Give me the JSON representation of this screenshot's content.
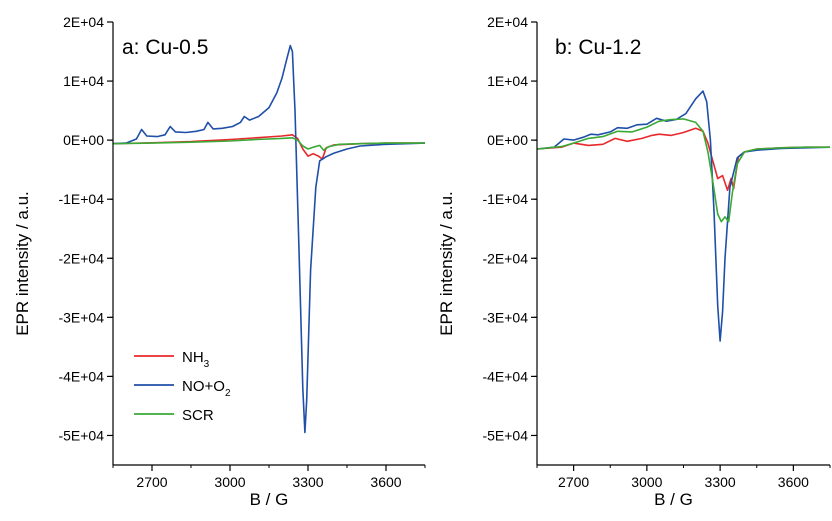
{
  "chart_data": [
    {
      "type": "line",
      "title": "a: Cu-0.5",
      "xlabel": "B / G",
      "ylabel": "EPR intensity / a.u.",
      "xlim": [
        2550,
        3750
      ],
      "ylim": [
        -55000,
        20000
      ],
      "x_ticks": [
        2700,
        3000,
        3300,
        3600
      ],
      "y_ticks": [
        20000,
        10000,
        0,
        -10000,
        -20000,
        -30000,
        -40000,
        -50000
      ],
      "y_tick_labels": [
        "2E+04",
        "1E+04",
        "0E+00",
        "-1E+04",
        "-2E+04",
        "-3E+04",
        "-4E+04",
        "-5E+04"
      ],
      "legend": "bottom-left",
      "series": [
        {
          "name": "NH3",
          "legend_main": "NH",
          "legend_sub": "3",
          "color": "#e8282b",
          "x": [
            2550,
            2700,
            2850,
            3000,
            3100,
            3200,
            3240,
            3260,
            3280,
            3300,
            3320,
            3340,
            3355,
            3370,
            3400,
            3500,
            3600,
            3750
          ],
          "y": [
            -600,
            -450,
            -250,
            100,
            400,
            700,
            900,
            300,
            -1500,
            -2700,
            -2300,
            -2700,
            -3200,
            -1300,
            -800,
            -600,
            -500,
            -500
          ]
        },
        {
          "name": "NO+O2",
          "legend_main": "NO+O",
          "legend_sub": "2",
          "color": "#1f4fa8",
          "x": [
            2550,
            2600,
            2640,
            2660,
            2680,
            2720,
            2750,
            2770,
            2790,
            2830,
            2870,
            2900,
            2915,
            2935,
            2970,
            3010,
            3040,
            3055,
            3075,
            3110,
            3150,
            3180,
            3200,
            3220,
            3232,
            3240,
            3250,
            3265,
            3280,
            3288,
            3295,
            3310,
            3330,
            3345,
            3370,
            3400,
            3450,
            3500,
            3600,
            3750
          ],
          "y": [
            -600,
            -500,
            200,
            1800,
            700,
            600,
            900,
            2300,
            1400,
            1300,
            1500,
            1800,
            3000,
            1900,
            2000,
            2300,
            3000,
            4000,
            3400,
            4000,
            5500,
            8000,
            10500,
            14000,
            16000,
            15000,
            5000,
            -18000,
            -42000,
            -49500,
            -44000,
            -22000,
            -8000,
            -3500,
            -2800,
            -2200,
            -1500,
            -1000,
            -700,
            -500
          ]
        },
        {
          "name": "SCR",
          "legend_main": "SCR",
          "legend_sub": "",
          "color": "#3aa935",
          "x": [
            2550,
            2700,
            2850,
            3000,
            3100,
            3200,
            3240,
            3260,
            3280,
            3300,
            3320,
            3345,
            3360,
            3380,
            3420,
            3500,
            3600,
            3750
          ],
          "y": [
            -600,
            -500,
            -350,
            -150,
            100,
            300,
            400,
            0,
            -1000,
            -1500,
            -1200,
            -900,
            -1700,
            -1100,
            -700,
            -600,
            -500,
            -500
          ]
        }
      ]
    },
    {
      "type": "line",
      "title": "b: Cu-1.2",
      "xlabel": "B / G",
      "ylabel": "EPR intensity / a.u.",
      "xlim": [
        2550,
        3750
      ],
      "ylim": [
        -55000,
        20000
      ],
      "x_ticks": [
        2700,
        3000,
        3300,
        3600
      ],
      "y_ticks": [
        20000,
        10000,
        0,
        -10000,
        -20000,
        -30000,
        -40000,
        -50000
      ],
      "y_tick_labels": [
        "2E+04",
        "1E+04",
        "0E+00",
        "-1E+04",
        "-2E+04",
        "-3E+04",
        "-4E+04",
        "-5E+04"
      ],
      "series": [
        {
          "name": "NH3",
          "color": "#e8282b",
          "x": [
            2550,
            2650,
            2700,
            2760,
            2820,
            2870,
            2920,
            2980,
            3020,
            3050,
            3100,
            3150,
            3200,
            3230,
            3250,
            3270,
            3290,
            3310,
            3330,
            3345,
            3355,
            3375,
            3400,
            3450,
            3550,
            3650,
            3750
          ],
          "y": [
            -1500,
            -1200,
            -500,
            -900,
            -700,
            300,
            -200,
            300,
            800,
            1000,
            800,
            1300,
            2000,
            1500,
            -500,
            -3500,
            -6500,
            -6000,
            -8500,
            -6500,
            -8200,
            -2800,
            -2000,
            -1500,
            -1300,
            -1200,
            -1200
          ]
        },
        {
          "name": "NO+O2",
          "color": "#1f4fa8",
          "x": [
            2550,
            2620,
            2660,
            2700,
            2740,
            2770,
            2800,
            2850,
            2880,
            2920,
            2960,
            3000,
            3040,
            3080,
            3120,
            3160,
            3200,
            3230,
            3245,
            3260,
            3275,
            3290,
            3300,
            3310,
            3320,
            3340,
            3370,
            3400,
            3450,
            3550,
            3650,
            3750
          ],
          "y": [
            -1500,
            -1200,
            200,
            0,
            500,
            1000,
            900,
            1400,
            2100,
            2000,
            2600,
            2700,
            3700,
            3200,
            3500,
            4500,
            7000,
            8300,
            6500,
            0,
            -12000,
            -28000,
            -34000,
            -29000,
            -20000,
            -8000,
            -3000,
            -2000,
            -1700,
            -1400,
            -1300,
            -1200
          ]
        },
        {
          "name": "SCR",
          "color": "#3aa935",
          "x": [
            2550,
            2650,
            2700,
            2760,
            2820,
            2880,
            2940,
            3000,
            3050,
            3100,
            3150,
            3200,
            3230,
            3250,
            3270,
            3290,
            3305,
            3320,
            3335,
            3350,
            3370,
            3400,
            3450,
            3550,
            3650,
            3750
          ],
          "y": [
            -1500,
            -1100,
            -500,
            300,
            600,
            1500,
            1400,
            2200,
            3200,
            3500,
            3600,
            3000,
            1500,
            -2000,
            -7000,
            -12500,
            -13800,
            -13000,
            -13800,
            -9000,
            -4000,
            -2000,
            -1500,
            -1300,
            -1200,
            -1200
          ]
        }
      ]
    }
  ]
}
